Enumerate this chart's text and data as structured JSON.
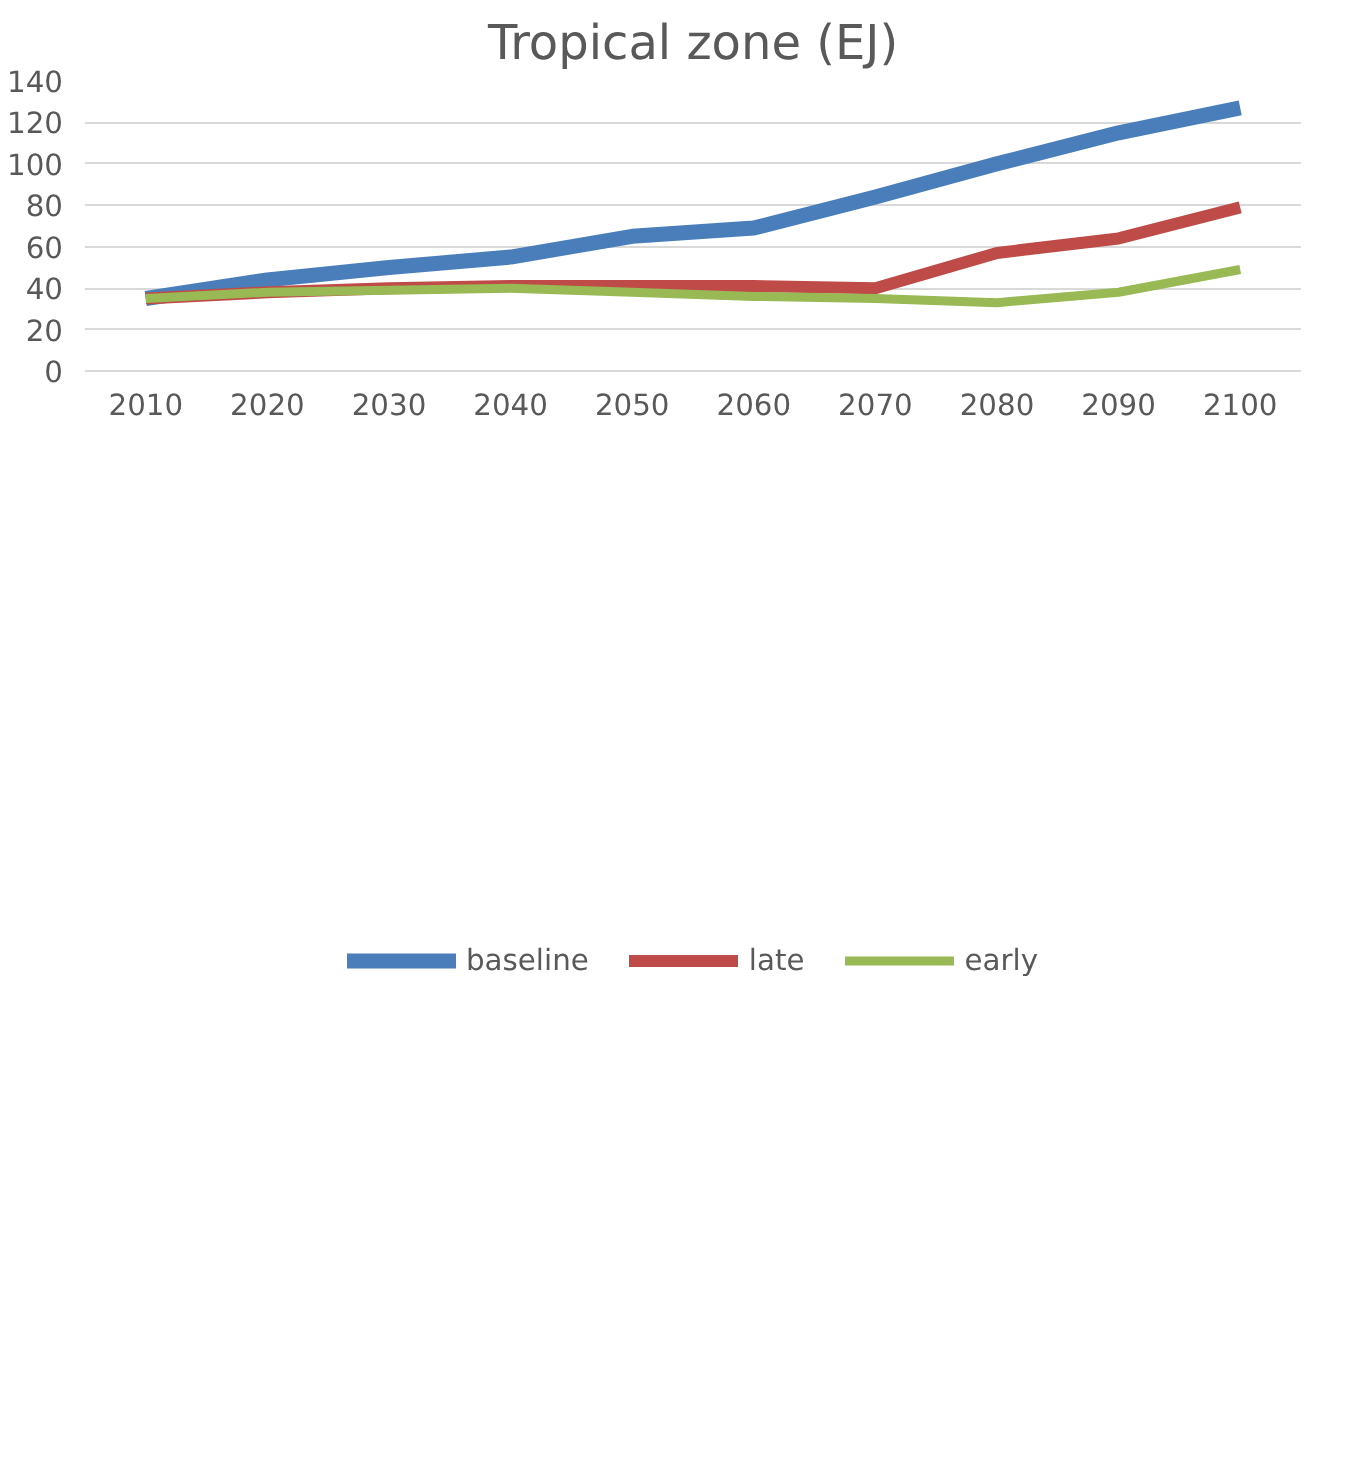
{
  "chart_data": {
    "type": "line",
    "title": "Tropical zone (EJ)",
    "categories": [
      "2010",
      "2020",
      "2030",
      "2040",
      "2050",
      "2060",
      "2070",
      "2080",
      "2090",
      "2100"
    ],
    "series": [
      {
        "name": "baseline",
        "color": "#4a7ebb",
        "values": [
          35,
          44,
          50,
          55,
          65,
          69,
          84,
          100,
          115,
          127
        ]
      },
      {
        "name": "late",
        "color": "#be4b48",
        "values": [
          35,
          38,
          40,
          41,
          41,
          41,
          40,
          57,
          64,
          79
        ]
      },
      {
        "name": "early",
        "color": "#98b954",
        "values": [
          35,
          38,
          39,
          40,
          38,
          36,
          35,
          33,
          38,
          49
        ]
      }
    ],
    "ylim": [
      0,
      140
    ],
    "yticks": [
      0,
      20,
      40,
      60,
      80,
      100,
      120,
      140
    ],
    "grid": "y",
    "legend": "bottom",
    "marker": "none",
    "line_style": "solid"
  }
}
